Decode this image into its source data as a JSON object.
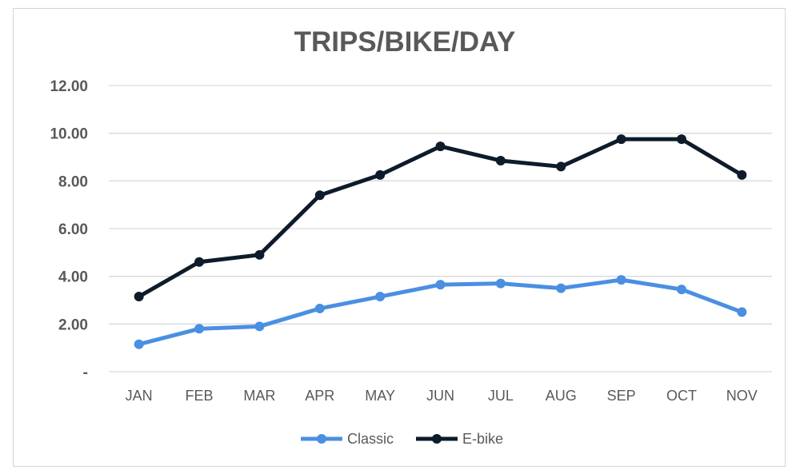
{
  "chart_data": {
    "type": "line",
    "title": "TRIPS/BIKE/DAY",
    "xlabel": "",
    "ylabel": "",
    "categories": [
      "JAN",
      "FEB",
      "MAR",
      "APR",
      "MAY",
      "JUN",
      "JUL",
      "AUG",
      "SEP",
      "OCT",
      "NOV"
    ],
    "ylim": [
      0,
      12
    ],
    "yticks": [
      0,
      2,
      4,
      6,
      8,
      10,
      12
    ],
    "ytick_labels": [
      "-",
      "2.00",
      "4.00",
      "6.00",
      "8.00",
      "10.00",
      "12.00"
    ],
    "grid": true,
    "legend_position": "bottom",
    "series": [
      {
        "name": "Classic",
        "color": "#4a8fe2",
        "values": [
          1.15,
          1.8,
          1.9,
          2.65,
          3.15,
          3.65,
          3.7,
          3.5,
          3.85,
          3.45,
          2.5
        ]
      },
      {
        "name": "E-bike",
        "color": "#0d1b2a",
        "values": [
          3.15,
          4.6,
          4.9,
          7.4,
          8.25,
          9.45,
          8.85,
          8.6,
          9.75,
          9.75,
          8.25
        ]
      }
    ]
  }
}
